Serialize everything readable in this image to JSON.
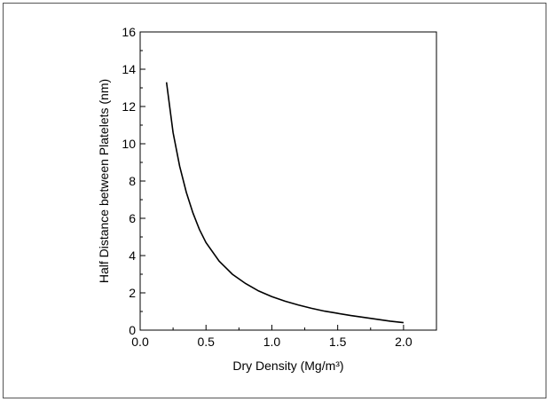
{
  "chart_data": {
    "type": "line",
    "xlabel": "Dry Density  (Mg/m³)",
    "ylabel": "Half Distance between Platelets (nm)",
    "xlim": [
      0.0,
      2.25
    ],
    "ylim": [
      0,
      16
    ],
    "xticks": [
      "0.0",
      "0.5",
      "1.0",
      "1.5",
      "2.0"
    ],
    "yticks": [
      "0",
      "2",
      "4",
      "6",
      "8",
      "10",
      "12",
      "14",
      "16"
    ],
    "grid": false,
    "series": [
      {
        "color": "#000000",
        "x": [
          0.2,
          0.25,
          0.3,
          0.35,
          0.4,
          0.45,
          0.5,
          0.6,
          0.7,
          0.8,
          0.9,
          1.0,
          1.1,
          1.2,
          1.3,
          1.4,
          1.5,
          1.6,
          1.7,
          1.8,
          1.9,
          2.0
        ],
        "y": [
          13.3,
          10.6,
          8.8,
          7.4,
          6.3,
          5.4,
          4.7,
          3.7,
          3.0,
          2.5,
          2.1,
          1.8,
          1.55,
          1.35,
          1.17,
          1.02,
          0.9,
          0.78,
          0.68,
          0.58,
          0.48,
          0.4
        ]
      }
    ]
  }
}
